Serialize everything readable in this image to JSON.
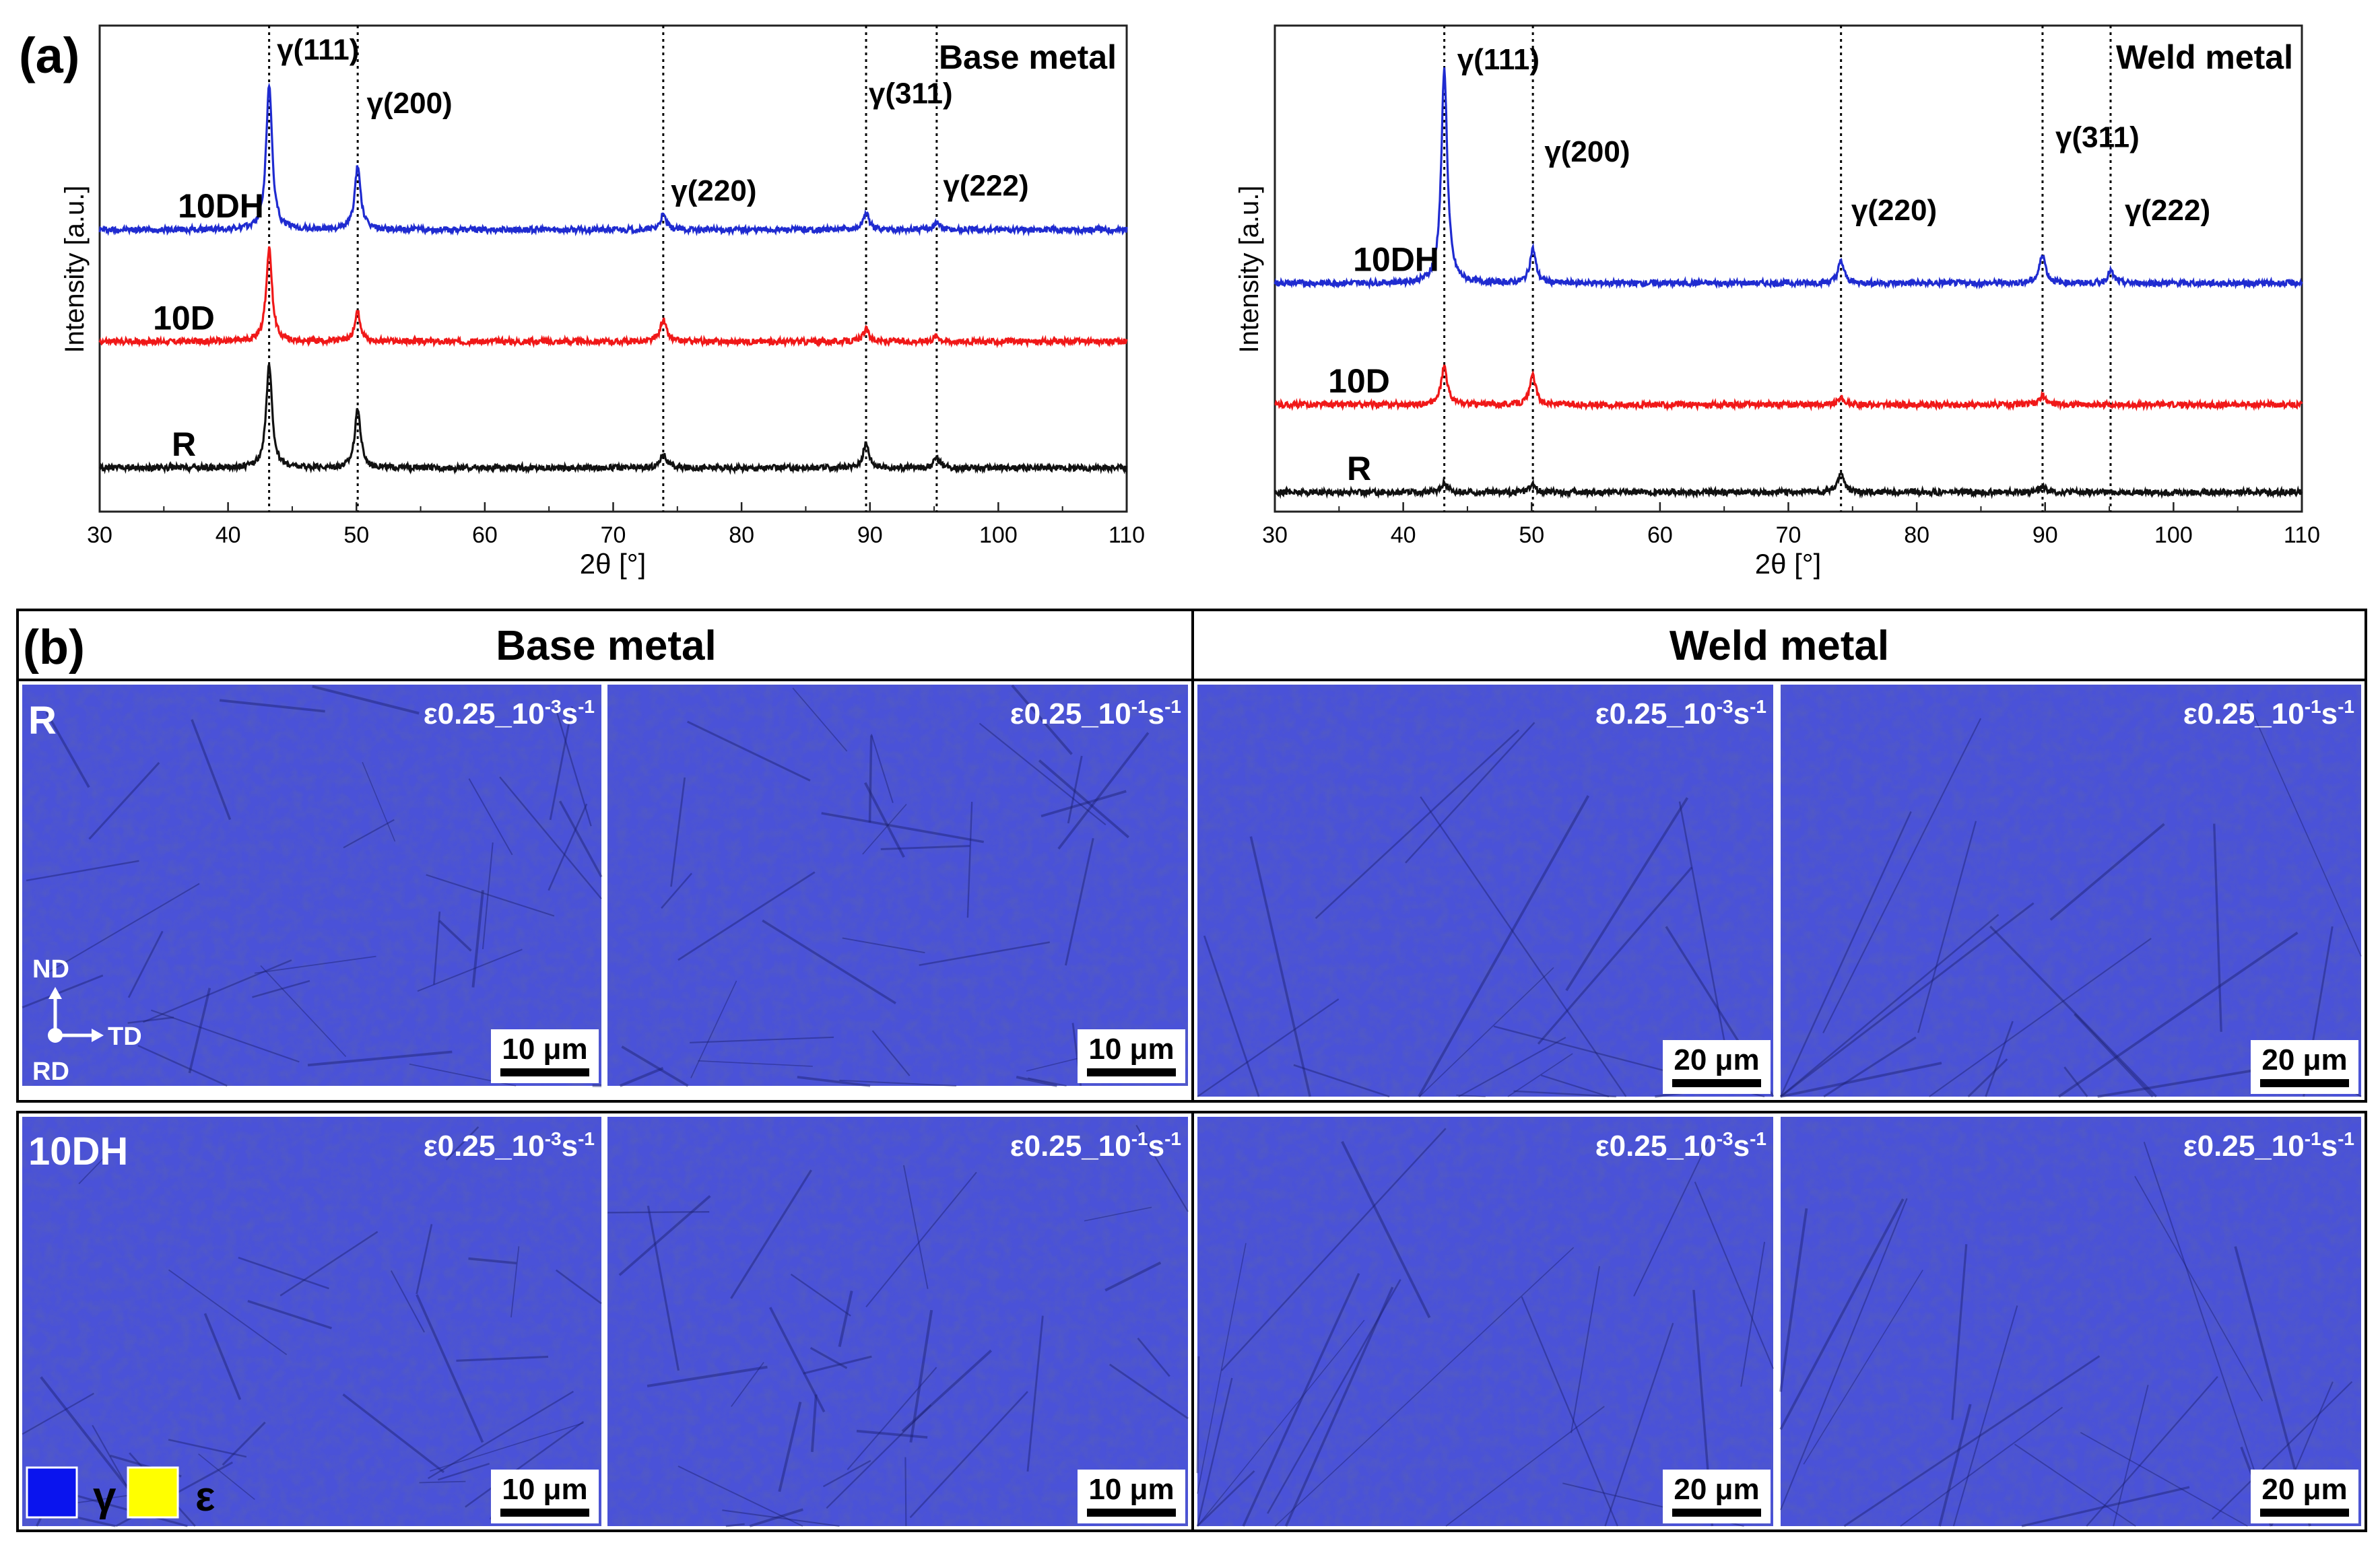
{
  "panel_a": {
    "label": "(a)",
    "charts": [
      {
        "id": "base",
        "title": "Base metal",
        "xlabel": "2θ [°]",
        "ylabel": "Intensity [a.u.]",
        "peak_lines": [
          43.2,
          50.1,
          73.9,
          89.7,
          95.2
        ],
        "peak_labels": [
          {
            "text": "γ(111)",
            "x": 43.8,
            "level": 0.93
          },
          {
            "text": "γ(200)",
            "x": 50.8,
            "level": 0.82
          },
          {
            "text": "γ(220)",
            "x": 74.5,
            "level": 0.64
          },
          {
            "text": "γ(311)",
            "x": 89.9,
            "level": 0.84
          },
          {
            "text": "γ(222)",
            "x": 95.7,
            "level": 0.65
          }
        ]
      },
      {
        "id": "weld",
        "title": "Weld metal",
        "xlabel": "2θ [°]",
        "ylabel": "Intensity [a.u.]",
        "peak_lines": [
          43.2,
          50.1,
          74.1,
          89.8,
          95.1
        ],
        "peak_labels": [
          {
            "text": "γ(111)",
            "x": 44.2,
            "level": 0.91
          },
          {
            "text": "γ(200)",
            "x": 51.0,
            "level": 0.72
          },
          {
            "text": "γ(220)",
            "x": 74.9,
            "level": 0.6
          },
          {
            "text": "γ(311)",
            "x": 90.8,
            "level": 0.75
          },
          {
            "text": "γ(222)",
            "x": 96.2,
            "level": 0.6
          }
        ]
      }
    ]
  },
  "chart_data": [
    {
      "type": "line",
      "title": "Base metal",
      "xlabel": "2θ [°]",
      "ylabel": "Intensity [a.u.]",
      "xlim": [
        30,
        110
      ],
      "ylim": [
        0,
        1
      ],
      "xticks": [
        30,
        40,
        50,
        60,
        70,
        80,
        90,
        100,
        110
      ],
      "series": [
        {
          "name": "10DH",
          "color": "#1f2bd0",
          "baseline": 0.58,
          "peaks": [
            [
              43.2,
              0.3
            ],
            [
              50.1,
              0.13
            ],
            [
              73.9,
              0.03
            ],
            [
              89.7,
              0.035
            ],
            [
              95.2,
              0.015
            ]
          ]
        },
        {
          "name": "10D",
          "color": "#f01818",
          "baseline": 0.35,
          "peaks": [
            [
              43.2,
              0.19
            ],
            [
              50.1,
              0.06
            ],
            [
              73.9,
              0.045
            ],
            [
              89.7,
              0.025
            ],
            [
              95.2,
              0.012
            ]
          ]
        },
        {
          "name": "R",
          "color": "#111111",
          "baseline": 0.09,
          "peaks": [
            [
              43.2,
              0.21
            ],
            [
              50.1,
              0.12
            ],
            [
              73.9,
              0.03
            ],
            [
              89.7,
              0.05
            ],
            [
              95.2,
              0.02
            ]
          ]
        }
      ]
    },
    {
      "type": "line",
      "title": "Weld metal",
      "xlabel": "2θ [°]",
      "ylabel": "Intensity [a.u.]",
      "xlim": [
        30,
        110
      ],
      "ylim": [
        0,
        1
      ],
      "xticks": [
        30,
        40,
        50,
        60,
        70,
        80,
        90,
        100,
        110
      ],
      "series": [
        {
          "name": "10DH",
          "color": "#1f2bd0",
          "baseline": 0.47,
          "peaks": [
            [
              43.2,
              0.44
            ],
            [
              50.1,
              0.07
            ],
            [
              74.1,
              0.045
            ],
            [
              89.8,
              0.06
            ],
            [
              95.1,
              0.025
            ]
          ]
        },
        {
          "name": "10D",
          "color": "#f01818",
          "baseline": 0.22,
          "peaks": [
            [
              43.2,
              0.08
            ],
            [
              50.1,
              0.06
            ],
            [
              74.1,
              0.015
            ],
            [
              89.8,
              0.02
            ]
          ]
        },
        {
          "name": "R",
          "color": "#111111",
          "baseline": 0.04,
          "peaks": [
            [
              43.2,
              0.02
            ],
            [
              50.1,
              0.015
            ],
            [
              74.1,
              0.04
            ],
            [
              89.8,
              0.012
            ]
          ]
        }
      ]
    }
  ],
  "panel_b": {
    "label": "(b)",
    "headers": [
      "Base metal",
      "Weld metal"
    ],
    "row_labels": [
      "R",
      "10DH"
    ],
    "image_labels": [
      "ε0.25_10",
      "-3",
      "s",
      "-1",
      "-1"
    ],
    "scales": [
      "10 μm",
      "10 μm",
      "20 μm",
      "20 μm"
    ],
    "axes": {
      "nd": "ND",
      "td": "TD",
      "rd": "RD"
    },
    "legend": [
      {
        "symbol": "γ",
        "color": "#0a14ee"
      },
      {
        "symbol": "ε",
        "color": "#ffff00"
      }
    ],
    "map_color": "#4a52d8"
  }
}
